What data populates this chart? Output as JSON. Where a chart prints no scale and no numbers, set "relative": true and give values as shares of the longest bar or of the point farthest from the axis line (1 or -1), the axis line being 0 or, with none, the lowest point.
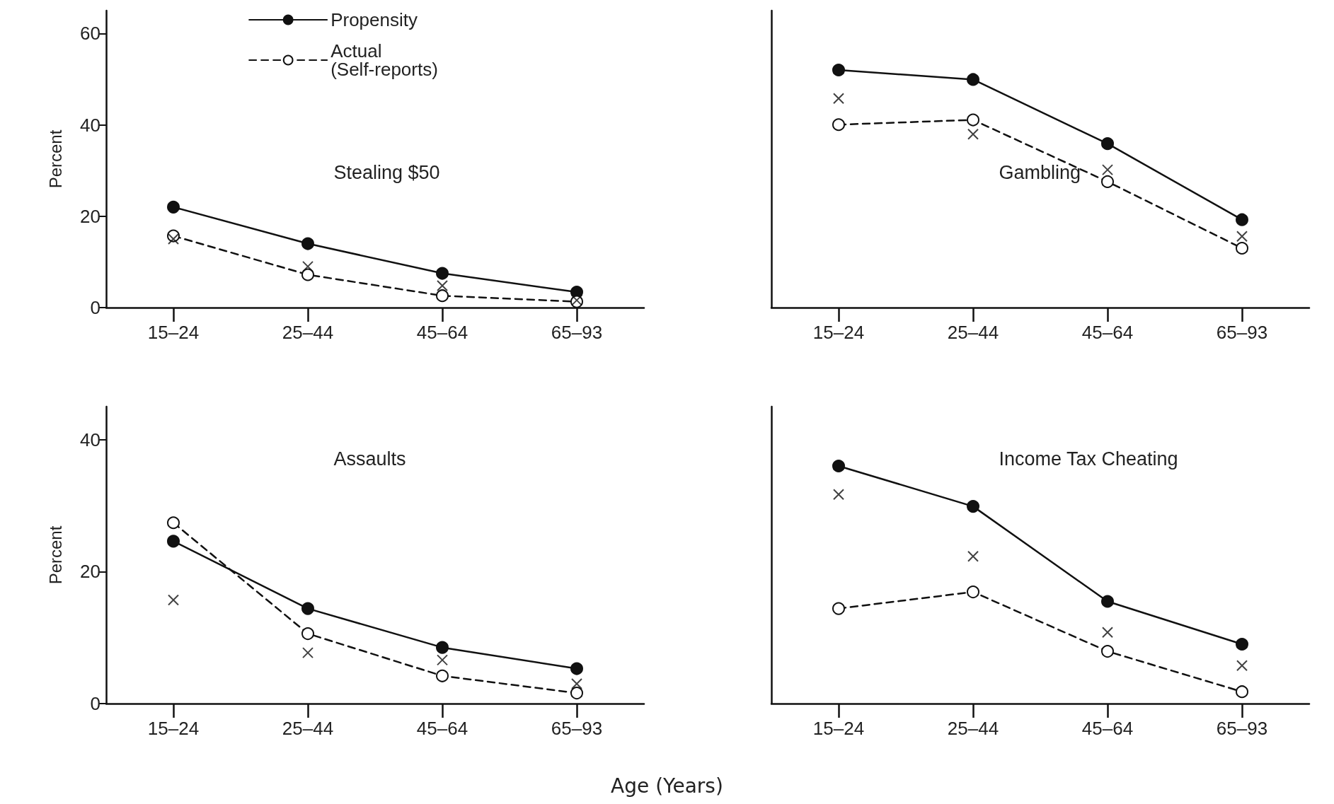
{
  "chart_data": [
    {
      "type": "line",
      "title": "Stealing $50",
      "ylabel": "Percent",
      "categories": [
        "15–24",
        "25–44",
        "45–64",
        "65–93"
      ],
      "ylim": [
        0,
        65
      ],
      "yticks": [
        0,
        20,
        40,
        60
      ],
      "grid": false,
      "legend": "top",
      "series": [
        {
          "name": "Propensity",
          "color": "#111111",
          "values": [
            22,
            14,
            7.5,
            3.4
          ],
          "marker": "circle",
          "line_style": "solid"
        },
        {
          "name": "Actual\n(Self-reports)",
          "color": "#111111",
          "values": [
            15.7,
            7.2,
            2.6,
            1.3
          ],
          "marker": "circle",
          "line_style": "dashed"
        },
        {
          "type": "scatter",
          "color": "#111111",
          "values": [
            15,
            9,
            4.8,
            1.6
          ],
          "marker": "cross"
        }
      ]
    },
    {
      "type": "line",
      "title": "Gambling",
      "categories": [
        "15–24",
        "25–44",
        "45–64",
        "65–93"
      ],
      "relative": true,
      "grid": false,
      "legend": false,
      "series": [
        {
          "color": "#111111",
          "values": [
            1,
            0.96,
            0.69,
            0.37
          ],
          "marker": "circle",
          "line_style": "solid"
        },
        {
          "color": "#111111",
          "values": [
            0.77,
            0.79,
            0.53,
            0.25
          ],
          "marker": "circle",
          "line_style": "dashed"
        },
        {
          "type": "scatter",
          "color": "#111111",
          "values": [
            0.88,
            0.73,
            0.58,
            0.3
          ],
          "marker": "cross"
        }
      ]
    },
    {
      "type": "line",
      "title": "Assaults",
      "ylabel": "Percent",
      "xlabel": "Age (Years)",
      "categories": [
        "15–24",
        "25–44",
        "45–64",
        "65–93"
      ],
      "ylim": [
        0,
        45
      ],
      "yticks": [
        0,
        20,
        40
      ],
      "grid": false,
      "legend": false,
      "series": [
        {
          "color": "#111111",
          "values": [
            24.6,
            14.4,
            8.5,
            5.3
          ],
          "marker": "circle",
          "line_style": "solid"
        },
        {
          "color": "#111111",
          "values": [
            27.4,
            10.6,
            4.2,
            1.6
          ],
          "marker": "circle",
          "line_style": "dashed"
        },
        {
          "type": "scatter",
          "color": "#111111",
          "values": [
            15.7,
            7.7,
            6.6,
            3
          ],
          "marker": "cross"
        }
      ]
    },
    {
      "type": "line",
      "title": "Income Tax Cheating",
      "categories": [
        "15–24",
        "25–44",
        "45–64",
        "65–93"
      ],
      "relative": true,
      "grid": false,
      "legend": false,
      "series": [
        {
          "color": "#111111",
          "values": [
            1,
            0.83,
            0.43,
            0.25
          ],
          "marker": "circle",
          "line_style": "solid"
        },
        {
          "color": "#111111",
          "values": [
            0.4,
            0.47,
            0.22,
            0.05
          ],
          "marker": "circle",
          "line_style": "dashed"
        },
        {
          "type": "scatter",
          "color": "#111111",
          "values": [
            0.88,
            0.62,
            0.3,
            0.16
          ],
          "marker": "cross"
        }
      ]
    }
  ]
}
